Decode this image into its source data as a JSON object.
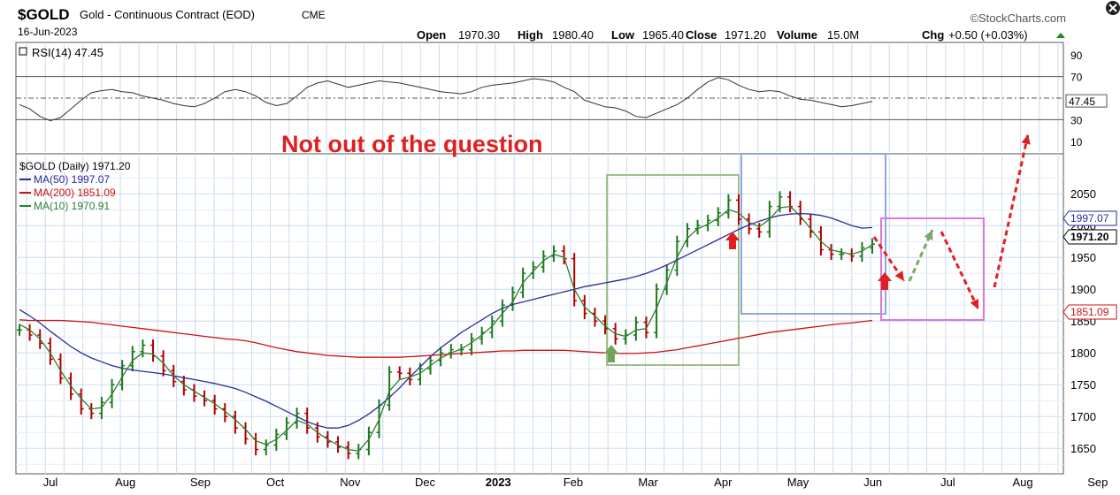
{
  "header": {
    "symbol": "$GOLD",
    "name": "Gold - Continuous Contract (EOD)",
    "exchange": "CME",
    "date": "16-Jun-2023",
    "brand": "©StockCharts.com",
    "open_label": "Open",
    "open": "1970.30",
    "high_label": "High",
    "high": "1980.40",
    "low_label": "Low",
    "low": "1965.40",
    "close_label": "Close",
    "close": "1971.20",
    "volume_label": "Volume",
    "volume": "15.0M",
    "chg_label": "Chg",
    "chg": "+0.50 (+0.03%)"
  },
  "annotation": "Not out of the question",
  "colors": {
    "price_up": "#1a7a1a",
    "price_down": "#b00000",
    "ma50": "#2a2a9a",
    "ma200": "#cc1111",
    "ma10": "#2f7f2f",
    "grid": "#c9dcef",
    "box_green": "#9fbf8a",
    "box_blue": "#8ea8dd",
    "box_pink": "#dd77dd",
    "annotation_red": "#e02020"
  },
  "chart_data": [
    {
      "type": "line",
      "title": "RSI(14) 47.45",
      "series": [
        {
          "name": "RSI(14)",
          "values": [
            44,
            40,
            33,
            29,
            32,
            40,
            48,
            55,
            57,
            58,
            56,
            55,
            52,
            50,
            48,
            45,
            43,
            42,
            45,
            50,
            56,
            58,
            56,
            52,
            46,
            43,
            45,
            52,
            60,
            64,
            66,
            63,
            60,
            62,
            64,
            66,
            65,
            64,
            62,
            60,
            58,
            56,
            55,
            54,
            56,
            60,
            62,
            63,
            64,
            66,
            68,
            67,
            65,
            60,
            56,
            48,
            45,
            42,
            41,
            38,
            33,
            32,
            36,
            40,
            44,
            50,
            58,
            65,
            69,
            67,
            62,
            58,
            56,
            57,
            56,
            52,
            49,
            48,
            46,
            44,
            42,
            43,
            45,
            47
          ]
        }
      ],
      "yticks": [
        10,
        30,
        47.45,
        70,
        90
      ],
      "ylim": [
        0,
        100
      ],
      "reference_lines": [
        30,
        50,
        70
      ]
    },
    {
      "type": "line",
      "title": "$GOLD (Daily) 1971.20",
      "legend": [
        "$GOLD (Daily) 1971.20",
        "MA(50) 1997.07",
        "MA(200) 1851.09",
        "MA(10) 1970.91"
      ],
      "x_tick_labels": [
        "Jul",
        "Aug",
        "Sep",
        "Oct",
        "Nov",
        "Dec",
        "2023",
        "Feb",
        "Mar",
        "Apr",
        "May",
        "Jun",
        "Jul",
        "Aug",
        "Sep"
      ],
      "yticks": [
        1650,
        1700,
        1750,
        1800,
        1850,
        1900,
        1950,
        2000,
        2050
      ],
      "ylim": [
        1610,
        2110
      ],
      "last_value_labels": [
        "1997.07",
        "1971.20",
        "1851.09"
      ],
      "series": [
        {
          "name": "$GOLD (Daily)",
          "values": [
            1836,
            1828,
            1815,
            1790,
            1760,
            1735,
            1712,
            1705,
            1722,
            1750,
            1780,
            1802,
            1812,
            1795,
            1772,
            1755,
            1742,
            1732,
            1725,
            1712,
            1700,
            1682,
            1665,
            1648,
            1655,
            1672,
            1690,
            1705,
            1682,
            1668,
            1660,
            1652,
            1642,
            1648,
            1675,
            1718,
            1770,
            1768,
            1758,
            1775,
            1788,
            1800,
            1805,
            1805,
            1822,
            1832,
            1850,
            1875,
            1895,
            1925,
            1935,
            1952,
            1960,
            1948,
            1882,
            1862,
            1850,
            1838,
            1822,
            1828,
            1848,
            1832,
            1900,
            1930,
            1975,
            1995,
            2000,
            2008,
            2020,
            2040,
            2010,
            1995,
            1990,
            2030,
            2045,
            2030,
            2010,
            1990,
            1962,
            1955,
            1955,
            1952,
            1965,
            1971
          ]
        },
        {
          "name": "MA(50)",
          "values": [
            1868,
            1858,
            1847,
            1834,
            1822,
            1810,
            1800,
            1792,
            1786,
            1780,
            1776,
            1773,
            1771,
            1769,
            1767,
            1764,
            1761,
            1758,
            1755,
            1752,
            1748,
            1744,
            1738,
            1731,
            1724,
            1716,
            1708,
            1700,
            1692,
            1686,
            1682,
            1682,
            1686,
            1694,
            1704,
            1716,
            1730,
            1745,
            1762,
            1778,
            1794,
            1808,
            1820,
            1832,
            1842,
            1852,
            1862,
            1870,
            1876,
            1880,
            1884,
            1888,
            1892,
            1896,
            1900,
            1904,
            1907,
            1910,
            1913,
            1916,
            1920,
            1925,
            1931,
            1938,
            1946,
            1954,
            1962,
            1970,
            1978,
            1986,
            1994,
            2001,
            2007,
            2012,
            2016,
            2018,
            2019,
            2018,
            2016,
            2012,
            2006,
            2000,
            1996,
            1997
          ]
        },
        {
          "name": "MA(200)",
          "values": [
            1852,
            1851,
            1851,
            1851,
            1851,
            1850,
            1849,
            1848,
            1846,
            1844,
            1842,
            1840,
            1838,
            1836,
            1834,
            1832,
            1830,
            1828,
            1826,
            1824,
            1822,
            1821,
            1819,
            1816,
            1812,
            1808,
            1805,
            1802,
            1800,
            1798,
            1796,
            1795,
            1794,
            1793,
            1793,
            1793,
            1793,
            1793,
            1794,
            1795,
            1796,
            1797,
            1798,
            1799,
            1800,
            1801,
            1802,
            1803,
            1803,
            1804,
            1804,
            1804,
            1804,
            1804,
            1803,
            1802,
            1801,
            1800,
            1799,
            1799,
            1799,
            1800,
            1801,
            1803,
            1805,
            1808,
            1811,
            1814,
            1817,
            1820,
            1823,
            1826,
            1829,
            1832,
            1834,
            1836,
            1838,
            1840,
            1842,
            1844,
            1846,
            1847,
            1849,
            1851
          ]
        },
        {
          "name": "MA(10)",
          "values": [
            1845,
            1836,
            1822,
            1800,
            1772,
            1748,
            1728,
            1712,
            1714,
            1735,
            1762,
            1788,
            1800,
            1798,
            1784,
            1764,
            1750,
            1740,
            1730,
            1720,
            1708,
            1695,
            1680,
            1662,
            1656,
            1664,
            1678,
            1694,
            1688,
            1675,
            1664,
            1655,
            1648,
            1646,
            1664,
            1695,
            1740,
            1758,
            1762,
            1768,
            1780,
            1792,
            1800,
            1806,
            1816,
            1828,
            1842,
            1862,
            1880,
            1910,
            1928,
            1945,
            1955,
            1950,
            1900,
            1872,
            1858,
            1842,
            1830,
            1826,
            1836,
            1838,
            1870,
            1910,
            1950,
            1980,
            1995,
            2002,
            2012,
            2025,
            2020,
            2005,
            1998,
            2010,
            2028,
            2030,
            2015,
            1995,
            1975,
            1962,
            1958,
            1955,
            1960,
            1970
          ]
        }
      ],
      "annotations": [
        "green box Feb-Apr",
        "blue box Apr-Jun",
        "pink box Jun-Aug",
        "green up arrows",
        "red up arrows",
        "red dashed projection arrows"
      ]
    }
  ]
}
